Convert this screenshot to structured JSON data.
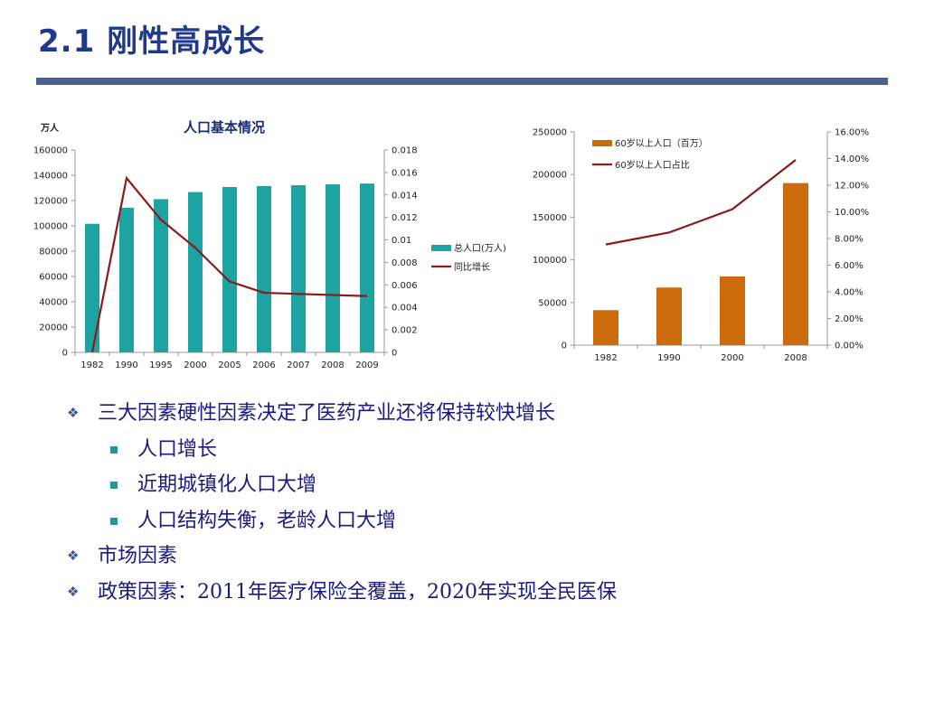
{
  "title": "2.1 刚性高成长",
  "chart_data": [
    {
      "type": "bar+line",
      "title": "人口基本情况",
      "unit_label": "万人",
      "categories": [
        "1982",
        "1990",
        "1995",
        "2000",
        "2005",
        "2006",
        "2007",
        "2008",
        "2009"
      ],
      "series": [
        {
          "name": "总人口(万人)",
          "type": "bar",
          "axis": "left",
          "color": "#1ea3a3",
          "values": [
            101654,
            114333,
            121121,
            126743,
            130756,
            131448,
            132129,
            132802,
            133474
          ]
        },
        {
          "name": "同比增长",
          "type": "line",
          "axis": "right",
          "color": "#8b1a1a",
          "values": [
            0,
            0.0155,
            0.0118,
            0.0093,
            0.0063,
            0.0053,
            0.0052,
            0.0051,
            0.005
          ]
        }
      ],
      "y_left": {
        "min": 0,
        "max": 160000,
        "ticks": [
          "0",
          "20000",
          "40000",
          "60000",
          "80000",
          "100000",
          "120000",
          "140000",
          "160000"
        ]
      },
      "y_right": {
        "min": 0,
        "max": 0.018,
        "ticks": [
          "0",
          "0.002",
          "0.004",
          "0.006",
          "0.008",
          "0.01",
          "0.012",
          "0.014",
          "0.016",
          "0.018"
        ]
      },
      "legend": "right"
    },
    {
      "type": "bar+line",
      "categories": [
        "1982",
        "1990",
        "2000",
        "2008"
      ],
      "series": [
        {
          "name": "60岁以上人口（百万）",
          "type": "bar",
          "axis": "left",
          "color": "#cc6a0c",
          "values": [
            41000,
            67500,
            80500,
            190000
          ]
        },
        {
          "name": "60岁以上人口占比",
          "type": "line",
          "axis": "right",
          "color": "#8b1a1a",
          "values": [
            0.0755,
            0.0845,
            0.102,
            0.139
          ]
        }
      ],
      "y_left": {
        "min": 0,
        "max": 250000,
        "ticks": [
          "0",
          "50000",
          "100000",
          "150000",
          "200000",
          "250000"
        ]
      },
      "y_right": {
        "min": 0,
        "max": 0.16,
        "ticks": [
          "0.00%",
          "2.00%",
          "4.00%",
          "6.00%",
          "8.00%",
          "10.00%",
          "12.00%",
          "14.00%",
          "16.00%"
        ]
      },
      "legend": "top-left"
    }
  ],
  "bullets": [
    {
      "level": 1,
      "text": "三大因素硬性因素决定了医药产业还将保持较快增长"
    },
    {
      "level": 2,
      "text": "人口增长"
    },
    {
      "level": 2,
      "text": "近期城镇化人口大增"
    },
    {
      "level": 2,
      "text": "人口结构失衡，老龄人口大增"
    },
    {
      "level": 1,
      "text": "市场因素"
    },
    {
      "level": 1,
      "text": "政策因素：2011年医疗保险全覆盖，2020年实现全民医保"
    }
  ],
  "icons": {
    "level1_marker": "diamond-bullet-icon",
    "level2_marker": "square-bullet-icon"
  },
  "colors": {
    "title": "#1f3a8a",
    "bar_teal": "#1ea3a3",
    "bar_orange": "#cc6a0c",
    "line": "#8b1a1a",
    "text": "#1a1a80"
  }
}
